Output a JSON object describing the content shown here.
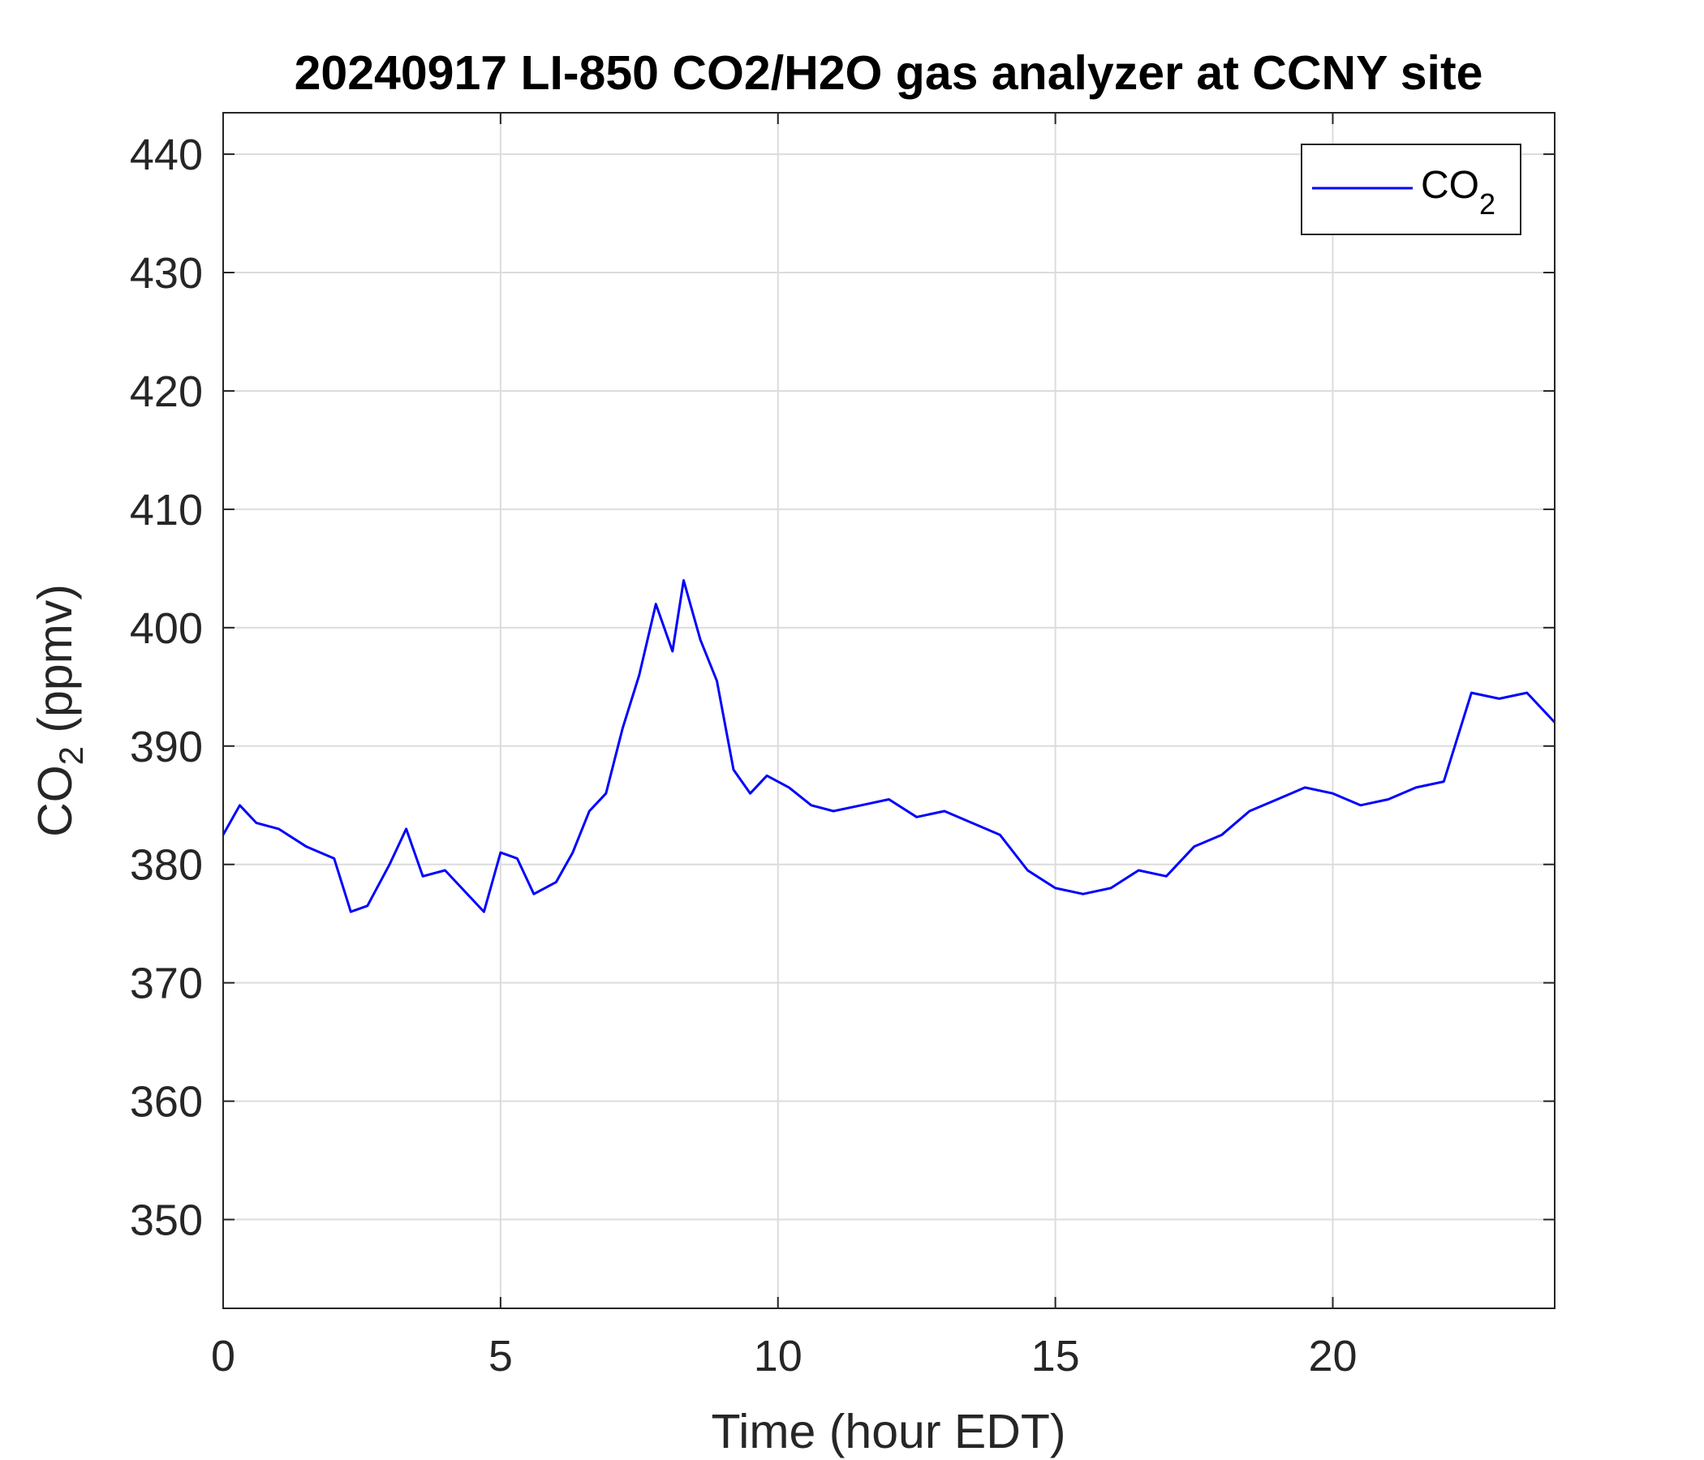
{
  "chart_data": {
    "type": "line",
    "title": "20240917 LI-850 CO2/H2O gas analyzer at CCNY site",
    "xlabel": "Time (hour EDT)",
    "ylabel_main": "CO",
    "ylabel_sub": "2",
    "ylabel_unit": " (ppmv)",
    "xlim": [
      0,
      24
    ],
    "ylim": [
      342.5,
      443.5
    ],
    "xticks": [
      0,
      5,
      10,
      15,
      20
    ],
    "yticks": [
      350,
      360,
      370,
      380,
      390,
      400,
      410,
      420,
      430,
      440
    ],
    "grid": true,
    "legend_position": "top-right",
    "series": [
      {
        "name_main": "CO",
        "name_sub": "2",
        "color": "#0000ff",
        "x": [
          0,
          0.3,
          0.6,
          1.0,
          1.5,
          2.0,
          2.3,
          2.6,
          3.0,
          3.3,
          3.6,
          4.0,
          4.3,
          4.7,
          5.0,
          5.3,
          5.6,
          6.0,
          6.3,
          6.6,
          6.9,
          7.2,
          7.5,
          7.8,
          8.1,
          8.3,
          8.6,
          8.9,
          9.2,
          9.5,
          9.8,
          10.2,
          10.6,
          11.0,
          11.5,
          12.0,
          12.5,
          13.0,
          13.5,
          14.0,
          14.5,
          15.0,
          15.5,
          16.0,
          16.5,
          17.0,
          17.5,
          18.0,
          18.5,
          19.0,
          19.5,
          20.0,
          20.5,
          21.0,
          21.5,
          22.0,
          22.5,
          23.0,
          23.5,
          24.0
        ],
        "values": [
          382.5,
          385.0,
          383.5,
          383.0,
          381.5,
          380.5,
          376.0,
          376.5,
          380.0,
          383.0,
          379.0,
          379.5,
          378.0,
          376.0,
          381.0,
          380.5,
          377.5,
          378.5,
          381.0,
          384.5,
          386.0,
          391.5,
          396.0,
          402.0,
          398.0,
          404.0,
          399.0,
          395.5,
          388.0,
          386.0,
          387.5,
          386.5,
          385.0,
          384.5,
          385.0,
          385.5,
          384.0,
          384.5,
          383.5,
          382.5,
          379.5,
          378.0,
          377.5,
          378.0,
          379.5,
          379.0,
          381.5,
          382.5,
          384.5,
          385.5,
          386.5,
          386.0,
          385.0,
          385.5,
          386.5,
          387.0,
          394.5,
          394.0,
          394.5,
          392.0
        ]
      }
    ]
  }
}
